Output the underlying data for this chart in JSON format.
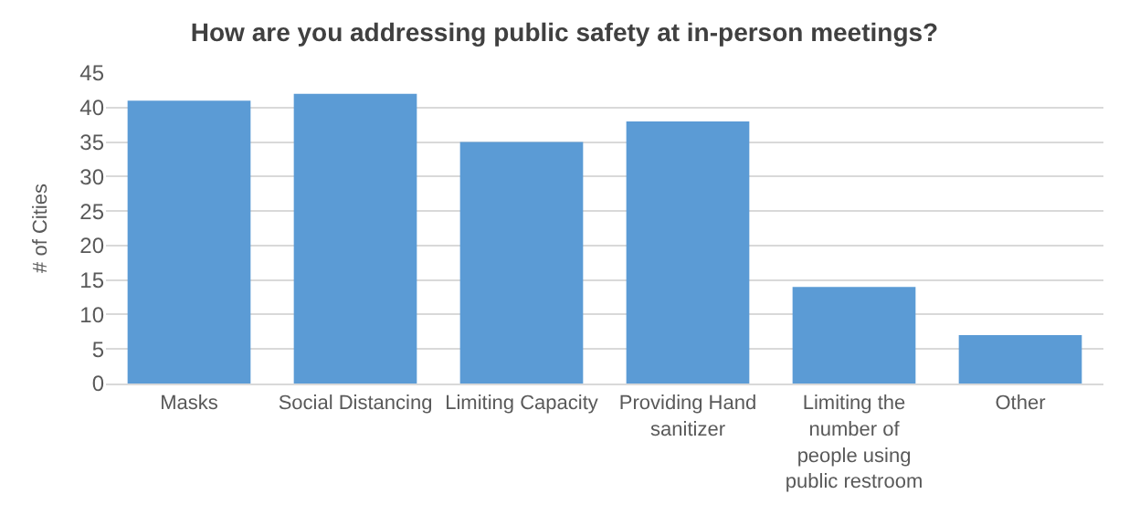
{
  "chart_data": {
    "type": "bar",
    "title": "How are you addressing public safety at in-person meetings?",
    "ylabel": "# of Cities",
    "categories": [
      "Masks",
      "Social Distancing",
      "Limiting Capacity",
      "Providing Hand sanitizer",
      "Limiting the number of people using public restroom",
      "Other"
    ],
    "values": [
      41,
      42,
      35,
      38,
      14,
      7
    ],
    "color": "#5b9bd5",
    "ylim": [
      0,
      45
    ],
    "yticks": [
      0,
      5,
      10,
      15,
      20,
      25,
      30,
      35,
      40,
      45
    ],
    "grid": "y"
  }
}
